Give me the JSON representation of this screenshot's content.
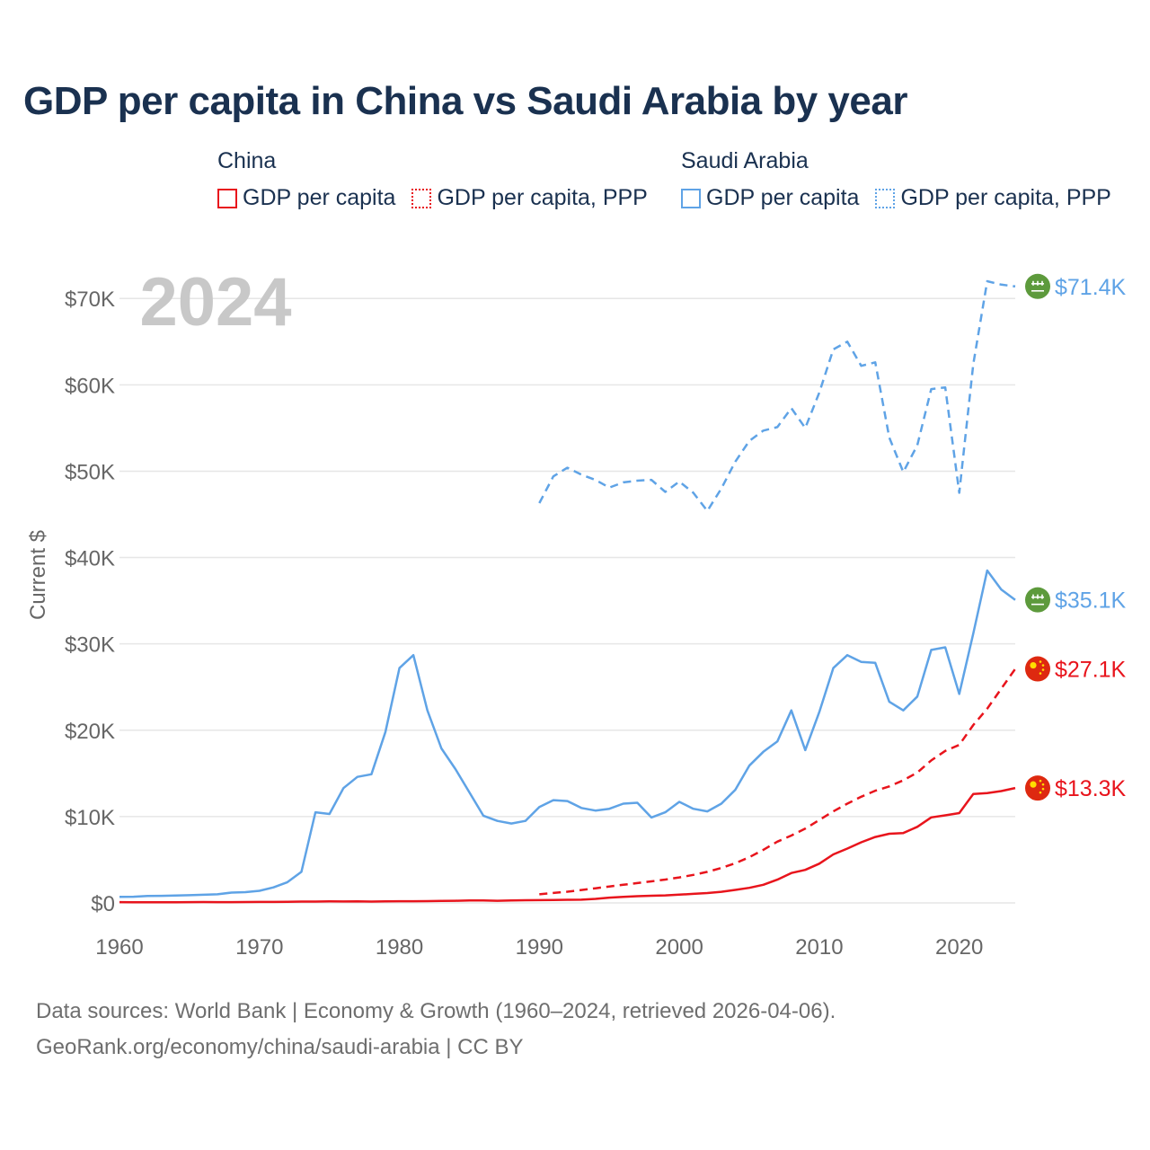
{
  "title": "GDP per capita in China vs Saudi Arabia by year",
  "legend": {
    "groups": [
      {
        "name": "China",
        "items": [
          "GDP per capita",
          "GDP per capita, PPP"
        ]
      },
      {
        "name": "Saudi Arabia",
        "items": [
          "GDP per capita",
          "GDP per capita, PPP"
        ]
      }
    ]
  },
  "source": {
    "line1": "Data sources: World Bank | Economy & Growth (1960–2024, retrieved 2026-04-06).",
    "line2": "GeoRank.org/economy/china/saudi-arabia | CC BY"
  },
  "colors": {
    "china": "#e8141c",
    "saudi": "#5fa3e6",
    "grid": "#e6e6e6",
    "axis_text": "#666666",
    "year_watermark": "#c8c8c8"
  },
  "chart_data": {
    "type": "line",
    "title": "GDP per capita in China vs Saudi Arabia by year",
    "ylabel": "Current $",
    "xlabel": "",
    "year_label": "2024",
    "xlim": [
      1960,
      2024
    ],
    "ylim": [
      0,
      72000
    ],
    "x_ticks": [
      1960,
      1970,
      1980,
      1990,
      2000,
      2010,
      2020
    ],
    "y_ticks": [
      0,
      10000,
      20000,
      30000,
      40000,
      50000,
      60000,
      70000
    ],
    "y_tick_labels": [
      "$0",
      "$10K",
      "$20K",
      "$30K",
      "$40K",
      "$50K",
      "$60K",
      "$70K"
    ],
    "grid": true,
    "series": [
      {
        "name": "China GDP per capita",
        "country": "China",
        "style": "solid",
        "color": "#e8141c",
        "end_label": "$13.3K",
        "flag": "cn-flag",
        "x": [
          1960,
          1961,
          1962,
          1963,
          1964,
          1965,
          1966,
          1967,
          1968,
          1969,
          1970,
          1971,
          1972,
          1973,
          1974,
          1975,
          1976,
          1977,
          1978,
          1979,
          1980,
          1981,
          1982,
          1983,
          1984,
          1985,
          1986,
          1987,
          1988,
          1989,
          1990,
          1991,
          1992,
          1993,
          1994,
          1995,
          1996,
          1997,
          1998,
          1999,
          2000,
          2001,
          2002,
          2003,
          2004,
          2005,
          2006,
          2007,
          2008,
          2009,
          2010,
          2011,
          2012,
          2013,
          2014,
          2015,
          2016,
          2017,
          2018,
          2019,
          2020,
          2021,
          2022,
          2023,
          2024
        ],
        "values": [
          90,
          76,
          71,
          74,
          85,
          98,
          104,
          97,
          91,
          100,
          113,
          119,
          132,
          157,
          160,
          178,
          165,
          185,
          156,
          183,
          195,
          197,
          203,
          225,
          250,
          294,
          282,
          251,
          283,
          310,
          318,
          333,
          366,
          377,
          473,
          610,
          709,
          782,
          829,
          873,
          959,
          1053,
          1149,
          1289,
          1509,
          1753,
          2099,
          2694,
          3468,
          3832,
          4550,
          5614,
          6300,
          7020,
          7636,
          8016,
          8094,
          8817,
          9905,
          10144,
          10409,
          12618,
          12720,
          12951,
          13303
        ]
      },
      {
        "name": "China GDP per capita, PPP",
        "country": "China",
        "style": "dashed",
        "color": "#e8141c",
        "end_label": "$27.1K",
        "flag": "cn-flag",
        "x": [
          1990,
          1991,
          1992,
          1993,
          1994,
          1995,
          1996,
          1997,
          1998,
          1999,
          2000,
          2001,
          2002,
          2003,
          2004,
          2005,
          2006,
          2007,
          2008,
          2009,
          2010,
          2011,
          2012,
          2013,
          2014,
          2015,
          2016,
          2017,
          2018,
          2019,
          2020,
          2021,
          2022,
          2023,
          2024
        ],
        "values": [
          1000,
          1150,
          1300,
          1500,
          1700,
          1900,
          2100,
          2300,
          2500,
          2700,
          2950,
          3250,
          3600,
          4050,
          4600,
          5300,
          6150,
          7100,
          7800,
          8600,
          9600,
          10600,
          11500,
          12300,
          13000,
          13500,
          14200,
          15100,
          16500,
          17600,
          18300,
          20600,
          22500,
          24800,
          27100
        ]
      },
      {
        "name": "Saudi Arabia GDP per capita",
        "country": "Saudi Arabia",
        "style": "solid",
        "color": "#5fa3e6",
        "end_label": "$35.1K",
        "flag": "sa-flag",
        "x": [
          1960,
          1961,
          1962,
          1963,
          1964,
          1965,
          1966,
          1967,
          1968,
          1969,
          1970,
          1971,
          1972,
          1973,
          1974,
          1975,
          1976,
          1977,
          1978,
          1979,
          1980,
          1981,
          1982,
          1983,
          1984,
          1985,
          1986,
          1987,
          1988,
          1989,
          1990,
          1991,
          1992,
          1993,
          1994,
          1995,
          1996,
          1997,
          1998,
          1999,
          2000,
          2001,
          2002,
          2003,
          2004,
          2005,
          2006,
          2007,
          2008,
          2009,
          2010,
          2011,
          2012,
          2013,
          2014,
          2015,
          2016,
          2017,
          2018,
          2019,
          2020,
          2021,
          2022,
          2023,
          2024
        ],
        "values": [
          700,
          720,
          800,
          820,
          850,
          900,
          950,
          1000,
          1200,
          1250,
          1400,
          1800,
          2400,
          3600,
          10500,
          10300,
          13300,
          14600,
          14900,
          19800,
          27200,
          28700,
          22300,
          17900,
          15500,
          12800,
          10100,
          9500,
          9200,
          9500,
          11100,
          11900,
          11800,
          11000,
          10700,
          10900,
          11500,
          11600,
          9900,
          10500,
          11700,
          10900,
          10600,
          11500,
          13100,
          15900,
          17500,
          18700,
          22300,
          17700,
          22100,
          27200,
          28700,
          27900,
          27800,
          23300,
          22300,
          23900,
          29300,
          29600,
          24200,
          31200,
          38500,
          36300,
          35100
        ]
      },
      {
        "name": "Saudi Arabia GDP per capita, PPP",
        "country": "Saudi Arabia",
        "style": "dashed",
        "color": "#5fa3e6",
        "end_label": "$71.4K",
        "flag": "sa-flag",
        "x": [
          1990,
          1991,
          1992,
          1993,
          1994,
          1995,
          1996,
          1997,
          1998,
          1999,
          2000,
          2001,
          2002,
          2003,
          2004,
          2005,
          2006,
          2007,
          2008,
          2009,
          2010,
          2011,
          2012,
          2013,
          2014,
          2015,
          2016,
          2017,
          2018,
          2019,
          2020,
          2021,
          2022,
          2023,
          2024
        ],
        "values": [
          46300,
          49400,
          50400,
          49600,
          49000,
          48100,
          48700,
          48900,
          49000,
          47600,
          48800,
          47500,
          45400,
          48000,
          51100,
          53500,
          54700,
          55100,
          57300,
          55000,
          59100,
          64100,
          65000,
          62200,
          62600,
          53900,
          49900,
          53000,
          59500,
          59700,
          47500,
          62400,
          72000,
          71600,
          71400
        ]
      }
    ]
  }
}
